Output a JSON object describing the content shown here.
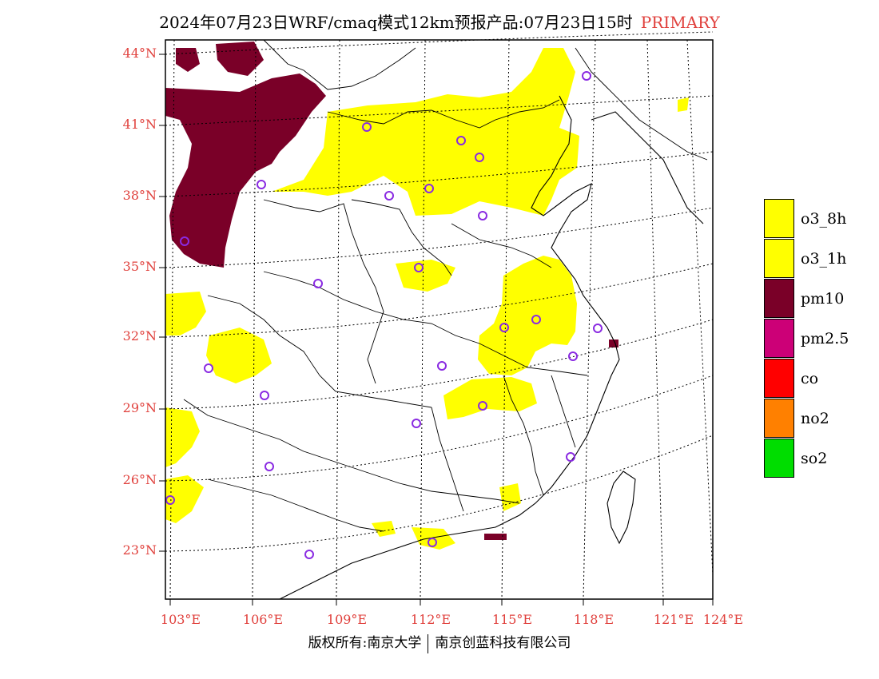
{
  "title": {
    "main": "2024年07月23日WRF/cmaq模式12km预报产品:07月23日15时",
    "tag": "PRIMARY"
  },
  "axes": {
    "lat_labels": [
      "44°N",
      "41°N",
      "38°N",
      "35°N",
      "32°N",
      "29°N",
      "26°N",
      "23°N"
    ],
    "lon_labels": [
      "103°E",
      "106°E",
      "109°E",
      "112°E",
      "115°E",
      "118°E",
      "121°E",
      "124°E"
    ]
  },
  "legend": [
    {
      "label": "o3_8h",
      "color": "#ffff00"
    },
    {
      "label": "o3_1h",
      "color": "#ffff00"
    },
    {
      "label": "pm10",
      "color": "#7a0028"
    },
    {
      "label": "pm2.5",
      "color": "#cc0077"
    },
    {
      "label": "co",
      "color": "#ff0000"
    },
    {
      "label": "no2",
      "color": "#ff8000"
    },
    {
      "label": "so2",
      "color": "#00dd00"
    }
  ],
  "copyright": {
    "left": "版权所有:南京大学",
    "right": "南京创蓝科技有限公司"
  },
  "colors": {
    "label_red": "#e0403c",
    "city_marker": "#8a2be2"
  }
}
